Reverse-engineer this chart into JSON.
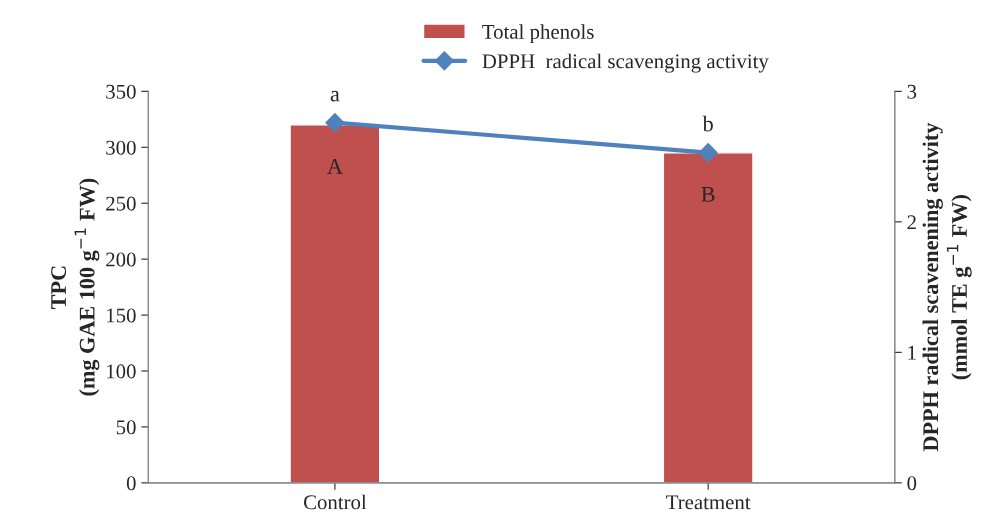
{
  "chart_data": {
    "type": "bar",
    "categories": [
      "Control",
      "Treatment"
    ],
    "ylabel": "TPC\n(mg GAE 100 g$^{−1}$ FW)",
    "y2label": "DPPH radical scavenening activity\n(mmol TE g$^{−1}$ FW)",
    "ylim": [
      0,
      350
    ],
    "yticks": [
      0,
      50,
      100,
      150,
      200,
      250,
      300,
      350
    ],
    "y2lim": [
      0,
      3
    ],
    "y2ticks": [
      0,
      1,
      2,
      3
    ],
    "series": [
      {
        "name": "Total phenols",
        "color": "#c0504d",
        "values": [
          320,
          295
        ]
      },
      {
        "name": "DPPH  radical scavenging activity",
        "type": "line",
        "axis": "y2",
        "color": "#4f81bd",
        "marker": "diamond",
        "values": [
          2.76,
          2.53
        ]
      }
    ],
    "annotations": [
      "A",
      "B",
      "a",
      "b"
    ],
    "legend": "top",
    "grid": false
  }
}
